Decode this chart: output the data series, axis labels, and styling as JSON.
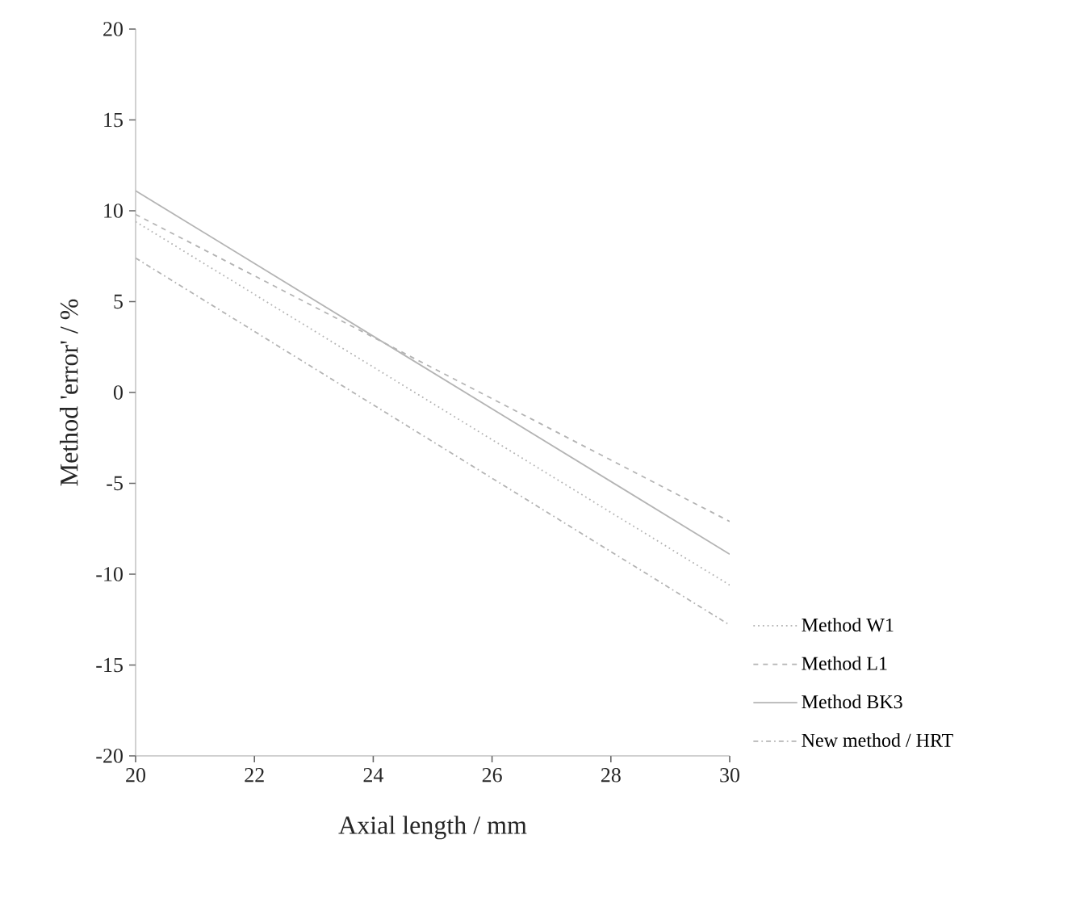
{
  "chart_data": {
    "type": "line",
    "xlabel": "Axial length / mm",
    "ylabel": "Method 'error' / %",
    "x": [
      20,
      30
    ],
    "xlim": [
      20,
      30
    ],
    "xticks": [
      20,
      22,
      24,
      26,
      28,
      30
    ],
    "ylim": [
      -20,
      20
    ],
    "yticks": [
      -20,
      -15,
      -10,
      -5,
      0,
      5,
      10,
      15,
      20
    ],
    "grid": false,
    "legend": "right",
    "marker": "none",
    "series": [
      {
        "name": "Method W1",
        "color": "#b4b4b4",
        "line_style": "dotted",
        "values": [
          9.4,
          -10.6
        ]
      },
      {
        "name": "Method L1",
        "color": "#b4b4b4",
        "line_style": "dashed",
        "values": [
          9.8,
          -7.1
        ]
      },
      {
        "name": "Method BK3",
        "color": "#b4b4b4",
        "line_style": "solid",
        "values": [
          11.1,
          -8.9
        ]
      },
      {
        "name": "New method / HRT",
        "color": "#b4b4b4",
        "line_style": "dashdot",
        "values": [
          7.4,
          -12.8
        ]
      }
    ]
  }
}
